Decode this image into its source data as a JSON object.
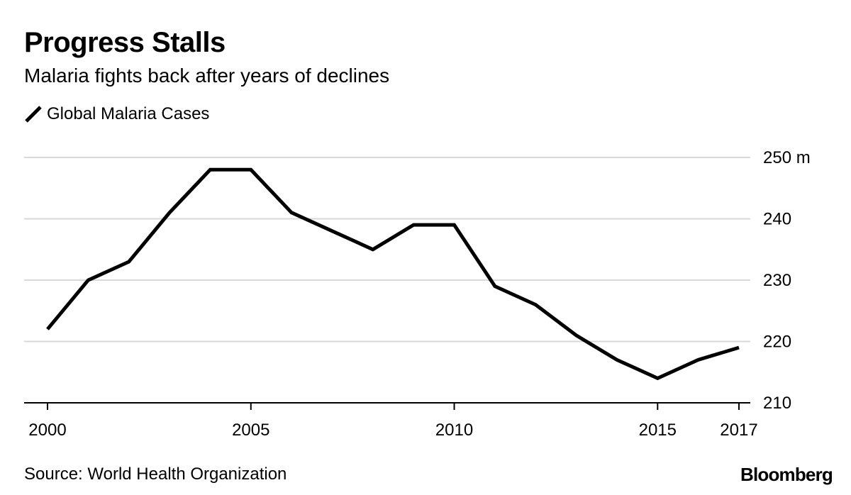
{
  "header": {
    "title": "Progress Stalls",
    "subtitle": "Malaria fights back after years of declines"
  },
  "legend": {
    "label": "Global Malaria Cases",
    "color": "#000000"
  },
  "footer": {
    "source": "Source: World Health Organization",
    "brand": "Bloomberg"
  },
  "chart_data": {
    "type": "line",
    "title": "Progress Stalls",
    "subtitle": "Malaria fights back after years of declines",
    "xlabel": "",
    "ylabel": "",
    "xlim": [
      2000,
      2017
    ],
    "ylim": [
      210,
      250
    ],
    "x_ticks": [
      2000,
      2005,
      2010,
      2015,
      2017
    ],
    "x_tick_labels": [
      "2000",
      "2005",
      "2010",
      "2015",
      "2017"
    ],
    "y_ticks": [
      210,
      220,
      230,
      240,
      250
    ],
    "y_tick_labels": [
      "210",
      "220",
      "230",
      "240",
      "250 m"
    ],
    "grid": true,
    "legend_position": "top-left",
    "series": [
      {
        "name": "Global Malaria Cases",
        "color": "#000000",
        "x": [
          2000,
          2001,
          2002,
          2003,
          2004,
          2005,
          2006,
          2007,
          2008,
          2009,
          2010,
          2011,
          2012,
          2013,
          2014,
          2015,
          2016,
          2017
        ],
        "values": [
          222,
          230,
          233,
          241,
          248,
          248,
          241,
          238,
          235,
          239,
          239,
          229,
          226,
          221,
          217,
          214,
          217,
          219
        ]
      }
    ]
  }
}
